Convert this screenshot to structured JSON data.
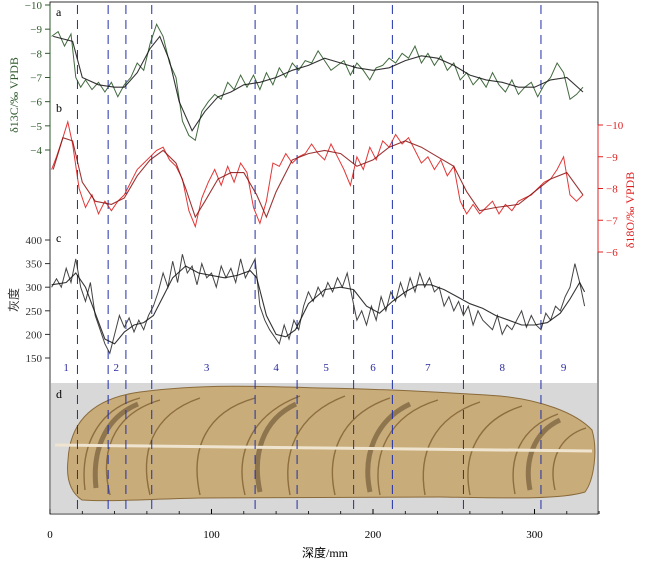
{
  "chart_data": {
    "type": "line",
    "xlabel": "深度/mm",
    "xlim": [
      0,
      340
    ],
    "x_ticks": [
      0,
      100,
      200,
      300
    ],
    "boundaries": [
      17,
      36,
      47,
      63,
      127,
      153,
      188,
      212,
      256,
      304
    ],
    "zones": [
      {
        "label": "1",
        "x": 10
      },
      {
        "label": "2",
        "x": 41
      },
      {
        "label": "3",
        "x": 97
      },
      {
        "label": "4",
        "x": 140
      },
      {
        "label": "5",
        "x": 171
      },
      {
        "label": "6",
        "x": 200
      },
      {
        "label": "7",
        "x": 234
      },
      {
        "label": "8",
        "x": 280
      },
      {
        "label": "9",
        "x": 318
      }
    ],
    "panels": [
      {
        "id": "a",
        "label": "a",
        "ylabel": "δ13C/‰ VPDB",
        "color": "#2e5a2a",
        "axis_side": "left",
        "ylim": [
          -4,
          -10
        ],
        "y_ticks": [
          -4,
          -5,
          -6,
          -7,
          -8,
          -9,
          -10
        ],
        "series": [
          {
            "x": [
              1,
              5,
              9,
              13,
              16,
              19,
              22,
              26,
              30,
              34,
              38,
              42,
              46,
              50,
              54,
              58,
              62,
              66,
              70,
              74,
              78,
              82,
              86,
              90,
              94,
              98,
              102,
              106,
              110,
              114,
              118,
              122,
              126,
              130,
              134,
              138,
              142,
              146,
              150,
              154,
              158,
              162,
              166,
              170,
              174,
              178,
              182,
              186,
              190,
              194,
              198,
              202,
              206,
              210,
              214,
              218,
              222,
              226,
              230,
              234,
              238,
              242,
              246,
              250,
              254,
              258,
              262,
              266,
              270,
              274,
              278,
              282,
              286,
              290,
              294,
              298,
              302,
              306,
              310,
              314,
              318,
              322,
              326,
              330
            ],
            "y": [
              -8.7,
              -8.9,
              -8.3,
              -8.8,
              -7.0,
              -6.6,
              -6.9,
              -6.5,
              -6.8,
              -6.4,
              -6.8,
              -6.2,
              -6.7,
              -7.0,
              -7.6,
              -7.3,
              -8.4,
              -9.2,
              -8.7,
              -7.6,
              -7.0,
              -5.2,
              -4.6,
              -4.4,
              -5.6,
              -6.0,
              -6.3,
              -6.1,
              -6.8,
              -6.5,
              -7.1,
              -6.6,
              -7.1,
              -6.5,
              -7.2,
              -6.7,
              -7.4,
              -7.0,
              -7.6,
              -7.3,
              -7.7,
              -7.6,
              -8.1,
              -7.7,
              -7.3,
              -7.5,
              -7.7,
              -7.1,
              -7.6,
              -7.3,
              -6.9,
              -7.4,
              -7.5,
              -7.8,
              -7.6,
              -8.0,
              -7.8,
              -8.3,
              -7.6,
              -8.0,
              -7.5,
              -7.9,
              -7.3,
              -7.6,
              -6.9,
              -7.2,
              -6.7,
              -7.0,
              -6.6,
              -7.2,
              -6.7,
              -6.4,
              -6.9,
              -6.3,
              -6.6,
              -6.8,
              -6.2,
              -6.7,
              -7.0,
              -7.6,
              -7.2,
              -6.1,
              -6.3,
              -6.6
            ]
          },
          {
            "x": [
              2,
              14,
              20,
              30,
              40,
              46,
              54,
              62,
              68,
              74,
              80,
              88,
              96,
              104,
              112,
              120,
              130,
              140,
              150,
              160,
              170,
              180,
              190,
              200,
              210,
              220,
              230,
              240,
              250,
              260,
              270,
              280,
              290,
              300,
              310,
              320,
              330
            ],
            "y": [
              -8.7,
              -8.5,
              -7.0,
              -6.7,
              -6.6,
              -6.6,
              -7.2,
              -8.2,
              -8.7,
              -7.7,
              -6.0,
              -4.8,
              -5.6,
              -6.2,
              -6.4,
              -6.7,
              -6.8,
              -7.0,
              -7.3,
              -7.5,
              -7.8,
              -7.6,
              -7.4,
              -7.3,
              -7.4,
              -7.7,
              -7.9,
              -7.8,
              -7.5,
              -7.1,
              -6.9,
              -6.8,
              -6.6,
              -6.6,
              -6.9,
              -7.0,
              -6.4
            ]
          }
        ]
      },
      {
        "id": "b",
        "label": "b",
        "ylabel": "δ18O/‰ VPDB",
        "color": "#e02020",
        "axis_side": "right",
        "ylim": [
          -6,
          -10
        ],
        "y_ticks": [
          -6,
          -7,
          -8,
          -9,
          -10
        ],
        "series": [
          {
            "x": [
              1,
              4,
              8,
              11,
              14,
              18,
              22,
              26,
              30,
              34,
              38,
              42,
              46,
              50,
              54,
              58,
              62,
              66,
              70,
              74,
              78,
              82,
              86,
              90,
              94,
              98,
              102,
              106,
              110,
              114,
              118,
              122,
              126,
              130,
              134,
              138,
              142,
              146,
              150,
              154,
              158,
              162,
              166,
              170,
              174,
              178,
              182,
              186,
              190,
              194,
              198,
              202,
              206,
              210,
              214,
              218,
              222,
              226,
              230,
              234,
              238,
              242,
              246,
              250,
              254,
              258,
              262,
              266,
              270,
              274,
              278,
              282,
              286,
              290,
              294,
              298,
              302,
              306,
              310,
              314,
              318,
              322,
              326,
              330
            ],
            "y": [
              -8.6,
              -9.0,
              -9.6,
              -10.1,
              -9.4,
              -8.0,
              -7.4,
              -7.8,
              -7.2,
              -7.6,
              -7.3,
              -7.6,
              -7.8,
              -8.2,
              -8.6,
              -8.8,
              -9.0,
              -9.2,
              -9.3,
              -8.9,
              -8.7,
              -8.3,
              -7.3,
              -6.8,
              -7.7,
              -8.2,
              -8.6,
              -8.1,
              -8.7,
              -8.2,
              -8.8,
              -8.5,
              -7.4,
              -6.9,
              -7.6,
              -8.8,
              -8.7,
              -9.1,
              -8.8,
              -9.0,
              -9.1,
              -9.4,
              -9.1,
              -8.9,
              -9.4,
              -9.0,
              -8.6,
              -8.1,
              -9.0,
              -8.6,
              -9.3,
              -8.9,
              -9.5,
              -9.3,
              -9.7,
              -9.4,
              -9.6,
              -9.2,
              -8.8,
              -9.0,
              -8.6,
              -8.9,
              -8.4,
              -8.7,
              -7.6,
              -7.2,
              -7.5,
              -7.2,
              -7.4,
              -7.6,
              -7.2,
              -7.5,
              -7.3,
              -7.6,
              -7.7,
              -7.8,
              -8.0,
              -8.2,
              -8.3,
              -8.6,
              -9.0,
              -7.8,
              -7.6,
              -7.8
            ]
          },
          {
            "x": [
              2,
              8,
              14,
              20,
              28,
              38,
              46,
              54,
              62,
              70,
              78,
              84,
              90,
              96,
              104,
              112,
              120,
              128,
              134,
              140,
              150,
              160,
              170,
              180,
              190,
              200,
              210,
              220,
              230,
              240,
              250,
              258,
              266,
              276,
              290,
              300,
              310,
              320,
              330
            ],
            "y": [
              -8.6,
              -9.6,
              -9.5,
              -8.2,
              -7.6,
              -7.5,
              -7.7,
              -8.4,
              -8.9,
              -9.2,
              -8.8,
              -8.0,
              -7.1,
              -7.6,
              -8.3,
              -8.5,
              -8.5,
              -7.8,
              -7.1,
              -7.9,
              -8.9,
              -9.1,
              -9.2,
              -9.1,
              -8.7,
              -8.9,
              -9.3,
              -9.5,
              -9.3,
              -9.0,
              -8.7,
              -7.9,
              -7.3,
              -7.4,
              -7.5,
              -7.9,
              -8.3,
              -8.5,
              -7.8
            ]
          }
        ]
      },
      {
        "id": "c",
        "label": "c",
        "ylabel": "灰度",
        "color": "#303030",
        "axis_side": "left",
        "ylim": [
          150,
          400
        ],
        "y_ticks": [
          150,
          200,
          250,
          300,
          350,
          400
        ],
        "series": [
          {
            "x": [
              1,
              4,
              7,
              10,
              13,
              16,
              19,
              22,
              25,
              28,
              31,
              34,
              37,
              40,
              43,
              46,
              49,
              52,
              55,
              58,
              61,
              64,
              67,
              70,
              73,
              76,
              79,
              82,
              85,
              88,
              91,
              94,
              97,
              100,
              103,
              106,
              109,
              112,
              115,
              118,
              121,
              124,
              127,
              130,
              133,
              136,
              139,
              142,
              145,
              148,
              151,
              154,
              157,
              160,
              163,
              166,
              169,
              172,
              175,
              178,
              181,
              184,
              187,
              190,
              193,
              196,
              199,
              202,
              205,
              208,
              211,
              214,
              217,
              220,
              223,
              226,
              229,
              232,
              235,
              238,
              241,
              244,
              247,
              250,
              253,
              256,
              259,
              262,
              265,
              268,
              271,
              274,
              277,
              280,
              283,
              286,
              289,
              292,
              295,
              298,
              301,
              304,
              307,
              310,
              313,
              316,
              319,
              322,
              325,
              328,
              331
            ],
            "y": [
              300,
              318,
              300,
              340,
              310,
              360,
              300,
              270,
              310,
              240,
              210,
              180,
              160,
              200,
              240,
              215,
              235,
              205,
              230,
              210,
              240,
              260,
              290,
              330,
              300,
              355,
              310,
              370,
              330,
              345,
              305,
              350,
              320,
              330,
              300,
              345,
              320,
              340,
              310,
              360,
              320,
              340,
              360,
              260,
              230,
              210,
              195,
              180,
              220,
              190,
              230,
              210,
              260,
              290,
              270,
              300,
              280,
              310,
              290,
              320,
              300,
              330,
              280,
              230,
              250,
              220,
              260,
              230,
              280,
              250,
              290,
              270,
              310,
              280,
              320,
              290,
              330,
              300,
              320,
              290,
              300,
              260,
              280,
              250,
              270,
              240,
              260,
              220,
              250,
              230,
              220,
              210,
              240,
              200,
              220,
              210,
              230,
              250,
              215,
              240,
              220,
              210,
              245,
              230,
              260,
              250,
              280,
              300,
              350,
              310,
              260
            ]
          },
          {
            "x": [
              1,
              10,
              16,
              22,
              28,
              34,
              40,
              46,
              52,
              58,
              64,
              70,
              76,
              84,
              92,
              100,
              108,
              116,
              124,
              128,
              134,
              140,
              146,
              152,
              160,
              170,
              180,
              188,
              196,
              204,
              212,
              220,
              228,
              236,
              244,
              252,
              260,
              268,
              276,
              284,
              292,
              300,
              308,
              316,
              322,
              328,
              331
            ],
            "y": [
              305,
              310,
              330,
              300,
              245,
              190,
              180,
              205,
              220,
              225,
              240,
              280,
              320,
              345,
              330,
              325,
              320,
              325,
              335,
              320,
              240,
              200,
              195,
              210,
              265,
              295,
              300,
              295,
              260,
              245,
              270,
              290,
              305,
              305,
              295,
              280,
              265,
              255,
              240,
              230,
              220,
              220,
              225,
              245,
              275,
              310,
              290
            ]
          }
        ]
      }
    ]
  }
}
